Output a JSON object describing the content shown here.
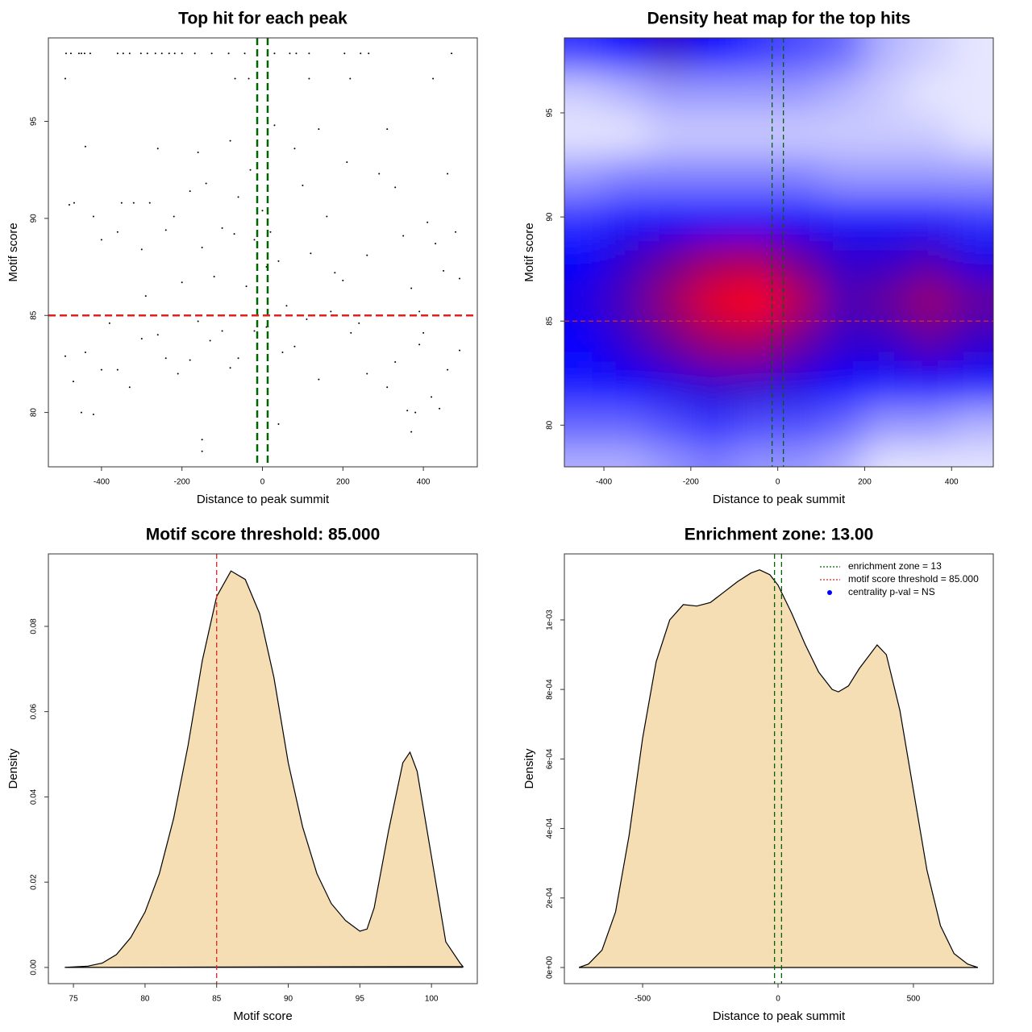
{
  "chart_data": [
    {
      "type": "scatter",
      "title": "Top hit for each peak",
      "x_label": "Distance to peak summit",
      "y_label": "Motif score",
      "xlim": [
        -532,
        534
      ],
      "ylim": [
        77.2,
        99.3
      ],
      "xticks": [
        -400,
        -200,
        0,
        200,
        400
      ],
      "yticks": [
        80,
        85,
        90,
        95
      ],
      "color": "#000000",
      "vlines": [
        -13,
        13
      ],
      "vline_color": "#006400",
      "hline": 85,
      "hline_color": "#dd2222",
      "x": [
        -488,
        -476,
        -456,
        -450,
        -442,
        -428,
        -360,
        -346,
        -330,
        -302,
        -286,
        -266,
        -250,
        -232,
        -218,
        -200,
        -168,
        -126,
        -84,
        -44,
        30,
        68,
        84,
        116,
        204,
        244,
        264,
        470,
        -490,
        -68,
        -34,
        116,
        218,
        424,
        -468,
        -480,
        -440,
        -420,
        -400,
        -380,
        -360,
        -350,
        -320,
        -300,
        -290,
        -280,
        -260,
        -240,
        -220,
        -200,
        -180,
        -160,
        -150,
        -140,
        -120,
        -100,
        -80,
        -70,
        -60,
        -40,
        -30,
        -20,
        0,
        10,
        20,
        30,
        40,
        60,
        80,
        100,
        120,
        140,
        160,
        180,
        200,
        210,
        240,
        260,
        290,
        310,
        330,
        350,
        370,
        390,
        410,
        430,
        450,
        460,
        480,
        490,
        -490,
        -470,
        -450,
        -440,
        -420,
        -400,
        -360,
        -330,
        -300,
        -260,
        -240,
        -210,
        -180,
        -160,
        -150,
        -150,
        -130,
        -100,
        -80,
        -60,
        -20,
        10,
        40,
        50,
        80,
        110,
        140,
        170,
        220,
        260,
        310,
        330,
        360,
        370,
        380,
        390,
        400,
        420,
        440,
        460,
        490
      ],
      "y": [
        98.5,
        98.5,
        98.5,
        98.5,
        98.5,
        98.5,
        98.5,
        98.5,
        98.5,
        98.5,
        98.5,
        98.5,
        98.5,
        98.5,
        98.5,
        98.5,
        98.5,
        98.5,
        98.5,
        98.5,
        98.5,
        98.5,
        98.5,
        98.5,
        98.5,
        98.5,
        98.5,
        98.5,
        97.2,
        97.2,
        97.2,
        97.2,
        97.2,
        97.2,
        90.8,
        90.7,
        93.7,
        90.1,
        88.9,
        84.6,
        89.3,
        90.8,
        90.8,
        88.4,
        86.0,
        90.8,
        93.6,
        89.4,
        90.1,
        86.7,
        91.4,
        93.4,
        88.5,
        91.8,
        87.0,
        89.5,
        94.0,
        89.2,
        91.1,
        86.5,
        92.5,
        88.9,
        90.4,
        87.5,
        89.3,
        94.8,
        87.8,
        85.5,
        93.6,
        91.7,
        88.2,
        94.6,
        90.1,
        87.2,
        86.8,
        92.9,
        84.6,
        88.1,
        92.3,
        94.6,
        91.6,
        89.1,
        86.4,
        85.2,
        89.8,
        88.7,
        87.3,
        92.3,
        89.3,
        86.9,
        82.9,
        81.6,
        80.0,
        83.1,
        79.9,
        82.2,
        82.2,
        81.3,
        83.8,
        84.0,
        82.8,
        82.0,
        82.7,
        84.7,
        78.6,
        78.0,
        83.7,
        84.2,
        82.3,
        82.8,
        84.2,
        84.4,
        79.4,
        83.1,
        83.4,
        84.8,
        81.7,
        85.2,
        84.1,
        82.0,
        81.3,
        82.6,
        80.1,
        79.0,
        80.0,
        83.5,
        84.1,
        80.8,
        80.2,
        82.2,
        83.2
      ]
    },
    {
      "type": "heatmap",
      "title": "Density heat map for the top hits",
      "x_label": "Distance to peak summit",
      "y_label": "Motif score",
      "xlim": [
        -491,
        496
      ],
      "ylim": [
        78.0,
        98.6
      ],
      "xticks": [
        -400,
        -200,
        0,
        200,
        400
      ],
      "yticks": [
        80,
        85,
        90,
        95
      ],
      "vlines": [
        -13,
        13
      ],
      "vline_color": "#006400",
      "hline": 85,
      "hline_color": "#cc3333",
      "x": [
        -450,
        -350,
        -250,
        -150,
        -50,
        50,
        150,
        250,
        350,
        450
      ],
      "y": [
        78,
        80,
        82,
        84,
        86,
        88,
        90,
        92,
        94,
        96,
        98
      ],
      "z": [
        [
          0.15,
          0.15,
          0.2,
          0.25,
          0.2,
          0.2,
          0.15,
          0.05,
          0.05,
          0.05
        ],
        [
          0.3,
          0.3,
          0.35,
          0.4,
          0.35,
          0.35,
          0.3,
          0.2,
          0.2,
          0.15
        ],
        [
          0.45,
          0.5,
          0.55,
          0.6,
          0.6,
          0.55,
          0.5,
          0.45,
          0.5,
          0.45
        ],
        [
          0.5,
          0.6,
          0.7,
          0.8,
          0.82,
          0.7,
          0.6,
          0.6,
          0.68,
          0.6
        ],
        [
          0.55,
          0.65,
          0.8,
          0.95,
          1.0,
          0.85,
          0.65,
          0.7,
          0.8,
          0.7
        ],
        [
          0.5,
          0.6,
          0.7,
          0.8,
          0.82,
          0.7,
          0.6,
          0.6,
          0.65,
          0.55
        ],
        [
          0.4,
          0.45,
          0.5,
          0.5,
          0.5,
          0.5,
          0.45,
          0.45,
          0.45,
          0.4
        ],
        [
          0.2,
          0.25,
          0.25,
          0.25,
          0.25,
          0.25,
          0.2,
          0.2,
          0.2,
          0.2
        ],
        [
          0.05,
          0.05,
          0.1,
          0.1,
          0.1,
          0.1,
          0.1,
          0.1,
          0.1,
          0.05
        ],
        [
          0.1,
          0.15,
          0.2,
          0.2,
          0.2,
          0.2,
          0.15,
          0.1,
          0.05,
          0.05
        ],
        [
          0.4,
          0.5,
          0.6,
          0.5,
          0.4,
          0.35,
          0.3,
          0.15,
          0.1,
          0.05
        ]
      ]
    },
    {
      "type": "area",
      "title": "Motif score threshold: 85.000",
      "x_label": "Motif score",
      "y_label": "Density",
      "xlim": [
        73.25,
        103.2
      ],
      "ylim": [
        -0.0038,
        0.097
      ],
      "xticks": [
        75,
        80,
        85,
        90,
        95,
        100
      ],
      "yticks": [
        {
          "value": 0,
          "label": "0.00"
        },
        0.02,
        0.04,
        0.06,
        0.08
      ],
      "color": "#f5deb3",
      "vlines": [
        85
      ],
      "vline_color": "#dd2222",
      "x": [
        74.4,
        76,
        77,
        78,
        79,
        80,
        81,
        82,
        83,
        84,
        85,
        86,
        87,
        88,
        89,
        90,
        91,
        92,
        93,
        94,
        95,
        95.5,
        96,
        97,
        98,
        98.5,
        99,
        100,
        101,
        102,
        102.2
      ],
      "values": [
        0,
        0.0003,
        0.001,
        0.003,
        0.007,
        0.013,
        0.022,
        0.035,
        0.052,
        0.072,
        0.087,
        0.093,
        0.091,
        0.083,
        0.068,
        0.048,
        0.033,
        0.022,
        0.015,
        0.011,
        0.0085,
        0.009,
        0.014,
        0.032,
        0.048,
        0.0505,
        0.046,
        0.026,
        0.006,
        0.001,
        0.0002
      ]
    },
    {
      "type": "area",
      "title": "Enrichment zone: 13.00",
      "x_label": "Distance to peak summit",
      "y_label": "Density",
      "xlim": [
        -789,
        795
      ],
      "ylim": [
        -4.64e-05,
        0.00119
      ],
      "xticks": [
        -500,
        0,
        500
      ],
      "yticks": [
        {
          "value": 0,
          "label": "0e+00"
        },
        {
          "value": 0.0002,
          "label": "2e-04"
        },
        {
          "value": 0.0004,
          "label": "4e-04"
        },
        {
          "value": 0.0006,
          "label": "6e-04"
        },
        {
          "value": 0.0008,
          "label": "8e-04"
        },
        {
          "value": 0.001,
          "label": "1e-03"
        }
      ],
      "color": "#f5deb3",
      "vlines": [
        -13,
        13
      ],
      "vline_color": "#006400",
      "x": [
        -735,
        -700,
        -650,
        -600,
        -550,
        -500,
        -450,
        -400,
        -350,
        -300,
        -250,
        -200,
        -150,
        -100,
        -68,
        -30,
        0,
        50,
        100,
        150,
        200,
        223,
        260,
        300,
        366,
        400,
        450,
        500,
        550,
        600,
        650,
        700,
        738
      ],
      "values": [
        0,
        1e-05,
        5e-05,
        0.00016,
        0.00038,
        0.00066,
        0.00088,
        0.001,
        0.001044,
        0.00104,
        0.00105,
        0.00108,
        0.00111,
        0.001135,
        0.001144,
        0.00113,
        0.0011,
        0.00102,
        0.00093,
        0.00085,
        0.0008,
        0.000793,
        0.00081,
        0.00086,
        0.000928,
        0.0009,
        0.00074,
        0.00051,
        0.00028,
        0.00012,
        4e-05,
        1e-05,
        0
      ],
      "legend_position": "topright",
      "legend": [
        {
          "label": "enrichment zone = 13",
          "color": "#006400",
          "style": "dotted"
        },
        {
          "label": "motif score threshold = 85.000",
          "color": "#dd2222",
          "style": "dotted"
        },
        {
          "label": "centrality p-val = NS",
          "color": "#0000ff",
          "style": "point"
        }
      ]
    }
  ]
}
